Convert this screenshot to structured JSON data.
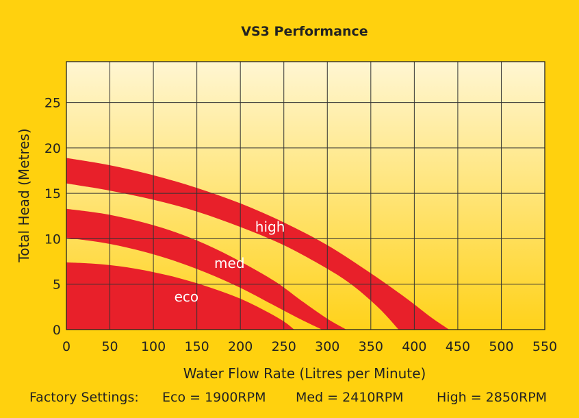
{
  "chart_data": {
    "type": "area",
    "title": "VS3 Performance",
    "xlabel": "Water Flow Rate (Litres per Minute)",
    "ylabel": "Total Head (Metres)",
    "xlim": [
      0,
      550
    ],
    "ylim": [
      0,
      29.5
    ],
    "x_ticks": [
      0,
      50,
      100,
      150,
      200,
      250,
      300,
      350,
      400,
      450,
      500,
      550
    ],
    "y_ticks": [
      0,
      5,
      10,
      15,
      20,
      25
    ],
    "grid": true,
    "band_color": "#E8202A",
    "series": [
      {
        "name": "eco",
        "label": "eco",
        "label_at": [
          124,
          3.1
        ],
        "upper": [
          [
            0,
            7.4
          ],
          [
            40,
            7.2
          ],
          [
            80,
            6.7
          ],
          [
            120,
            5.9
          ],
          [
            160,
            4.8
          ],
          [
            200,
            3.4
          ],
          [
            230,
            2.0
          ],
          [
            250,
            0.9
          ],
          [
            262,
            0
          ]
        ],
        "lower": null
      },
      {
        "name": "med",
        "label": "med",
        "label_at": [
          170,
          6.8
        ],
        "upper": [
          [
            0,
            13.3
          ],
          [
            40,
            12.8
          ],
          [
            80,
            12.0
          ],
          [
            120,
            10.9
          ],
          [
            160,
            9.4
          ],
          [
            200,
            7.5
          ],
          [
            240,
            5.3
          ],
          [
            270,
            3.2
          ],
          [
            300,
            1.2
          ],
          [
            322,
            0
          ]
        ],
        "lower": [
          [
            0,
            10.1
          ],
          [
            40,
            9.6
          ],
          [
            80,
            8.8
          ],
          [
            120,
            7.7
          ],
          [
            160,
            6.3
          ],
          [
            200,
            4.6
          ],
          [
            240,
            2.6
          ],
          [
            270,
            1.1
          ],
          [
            294,
            0
          ]
        ]
      },
      {
        "name": "high",
        "label": "high",
        "label_at": [
          217,
          10.8
        ],
        "upper": [
          [
            0,
            18.9
          ],
          [
            50,
            18.1
          ],
          [
            100,
            17.0
          ],
          [
            150,
            15.6
          ],
          [
            200,
            13.9
          ],
          [
            250,
            11.8
          ],
          [
            300,
            9.3
          ],
          [
            350,
            6.2
          ],
          [
            390,
            3.5
          ],
          [
            420,
            1.3
          ],
          [
            440,
            0
          ]
        ],
        "lower": [
          [
            0,
            16.1
          ],
          [
            50,
            15.3
          ],
          [
            100,
            14.3
          ],
          [
            150,
            13.0
          ],
          [
            200,
            11.3
          ],
          [
            250,
            9.3
          ],
          [
            300,
            6.7
          ],
          [
            330,
            4.8
          ],
          [
            360,
            2.3
          ],
          [
            382,
            0
          ]
        ]
      }
    ],
    "footer": {
      "label": "Factory Settings:",
      "eco": "Eco = 1900RPM",
      "med": "Med = 2410RPM",
      "high": "High = 2850RPM"
    }
  }
}
